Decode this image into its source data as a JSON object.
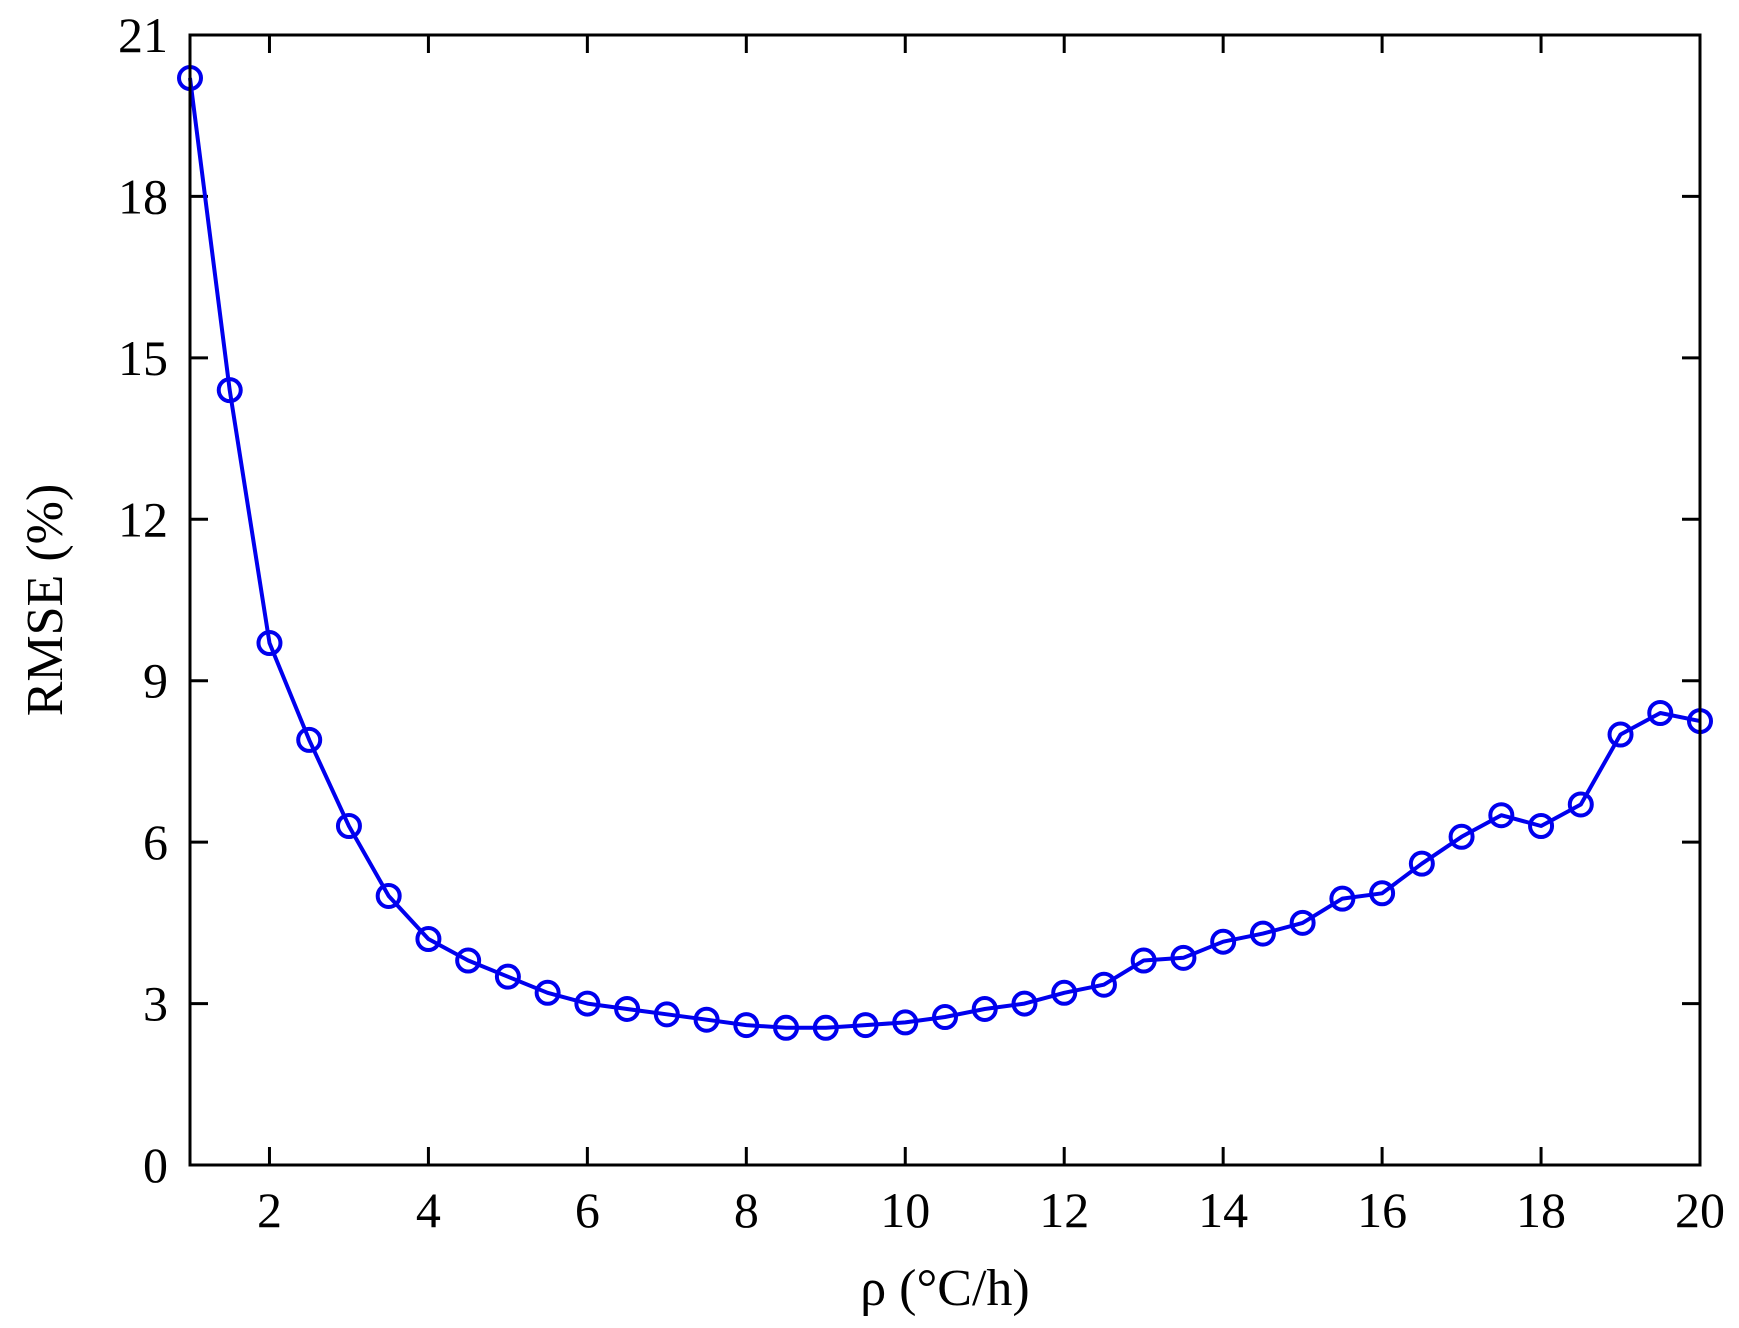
{
  "chart_data": {
    "type": "line",
    "title": "",
    "xlabel": "ρ (°C/h)",
    "ylabel": "RMSE (%)",
    "xlim": [
      1,
      20
    ],
    "ylim": [
      0,
      21
    ],
    "xticks": [
      2,
      4,
      6,
      8,
      10,
      12,
      14,
      16,
      18,
      20
    ],
    "xtick_labels": [
      "2",
      "4",
      "6",
      "8",
      "10",
      "12",
      "14",
      "16",
      "18",
      "20"
    ],
    "yticks": [
      0,
      3,
      6,
      9,
      12,
      15,
      18,
      21
    ],
    "ytick_labels": [
      "0",
      "3",
      "6",
      "9",
      "12",
      "15",
      "18",
      "21"
    ],
    "grid": false,
    "legend": "none",
    "series": [
      {
        "color": "#0000ee",
        "marker": "circle",
        "x": [
          1,
          1.5,
          2,
          2.5,
          3,
          3.5,
          4,
          4.5,
          5,
          5.5,
          6,
          6.5,
          7,
          7.5,
          8,
          8.5,
          9,
          9.5,
          10,
          10.5,
          11,
          11.5,
          12,
          12.5,
          13,
          13.5,
          14,
          14.5,
          15,
          15.5,
          16,
          16.5,
          17,
          17.5,
          18,
          18.5,
          19,
          19.5,
          20
        ],
        "y": [
          20.2,
          14.4,
          9.7,
          7.9,
          6.3,
          5.0,
          4.2,
          3.8,
          3.5,
          3.2,
          3.0,
          2.9,
          2.8,
          2.7,
          2.6,
          2.55,
          2.55,
          2.6,
          2.65,
          2.75,
          2.9,
          3.0,
          3.2,
          3.35,
          3.8,
          3.85,
          4.15,
          4.3,
          4.5,
          4.95,
          5.05,
          5.6,
          6.1,
          6.5,
          6.3,
          6.7,
          8.0,
          8.4,
          8.25
        ]
      }
    ]
  }
}
